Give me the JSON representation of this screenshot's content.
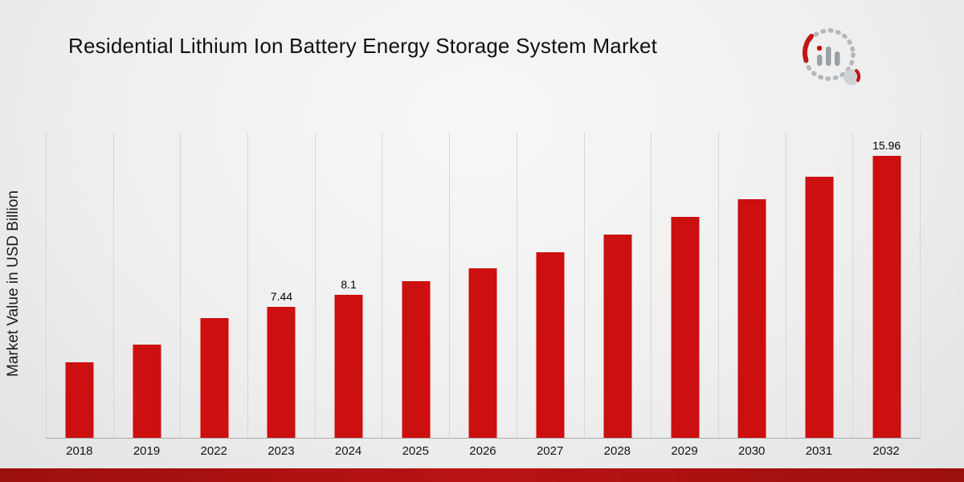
{
  "title": "Residential Lithium Ion Battery Energy Storage System Market",
  "chart_data": {
    "type": "bar",
    "title": "Residential Lithium Ion Battery Energy Storage System Market",
    "ylabel": "Market Value in USD Billion",
    "xlabel": "",
    "categories": [
      "2018",
      "2019",
      "2022",
      "2023",
      "2024",
      "2025",
      "2026",
      "2027",
      "2028",
      "2029",
      "2030",
      "2031",
      "2032"
    ],
    "values": [
      4.3,
      5.3,
      6.8,
      7.44,
      8.1,
      8.9,
      9.6,
      10.5,
      11.5,
      12.5,
      13.5,
      14.8,
      15.96
    ],
    "data_labels": {
      "2023": "7.44",
      "2024": "8.1",
      "2032": "15.96"
    },
    "ylim": [
      0,
      17.3
    ],
    "grid": "vertical",
    "legend": "none",
    "bar_color": "#cc0f0f"
  },
  "footer": {
    "accent_color_left": "#9c0f0f",
    "accent_color_mid": "#b91313",
    "accent_color_right": "#9c0f0f"
  },
  "brand": {
    "logo_icon": "market-research-magnifier-chart-logo",
    "logo_gray": "#b4b8bd",
    "logo_red": "#c21414"
  }
}
